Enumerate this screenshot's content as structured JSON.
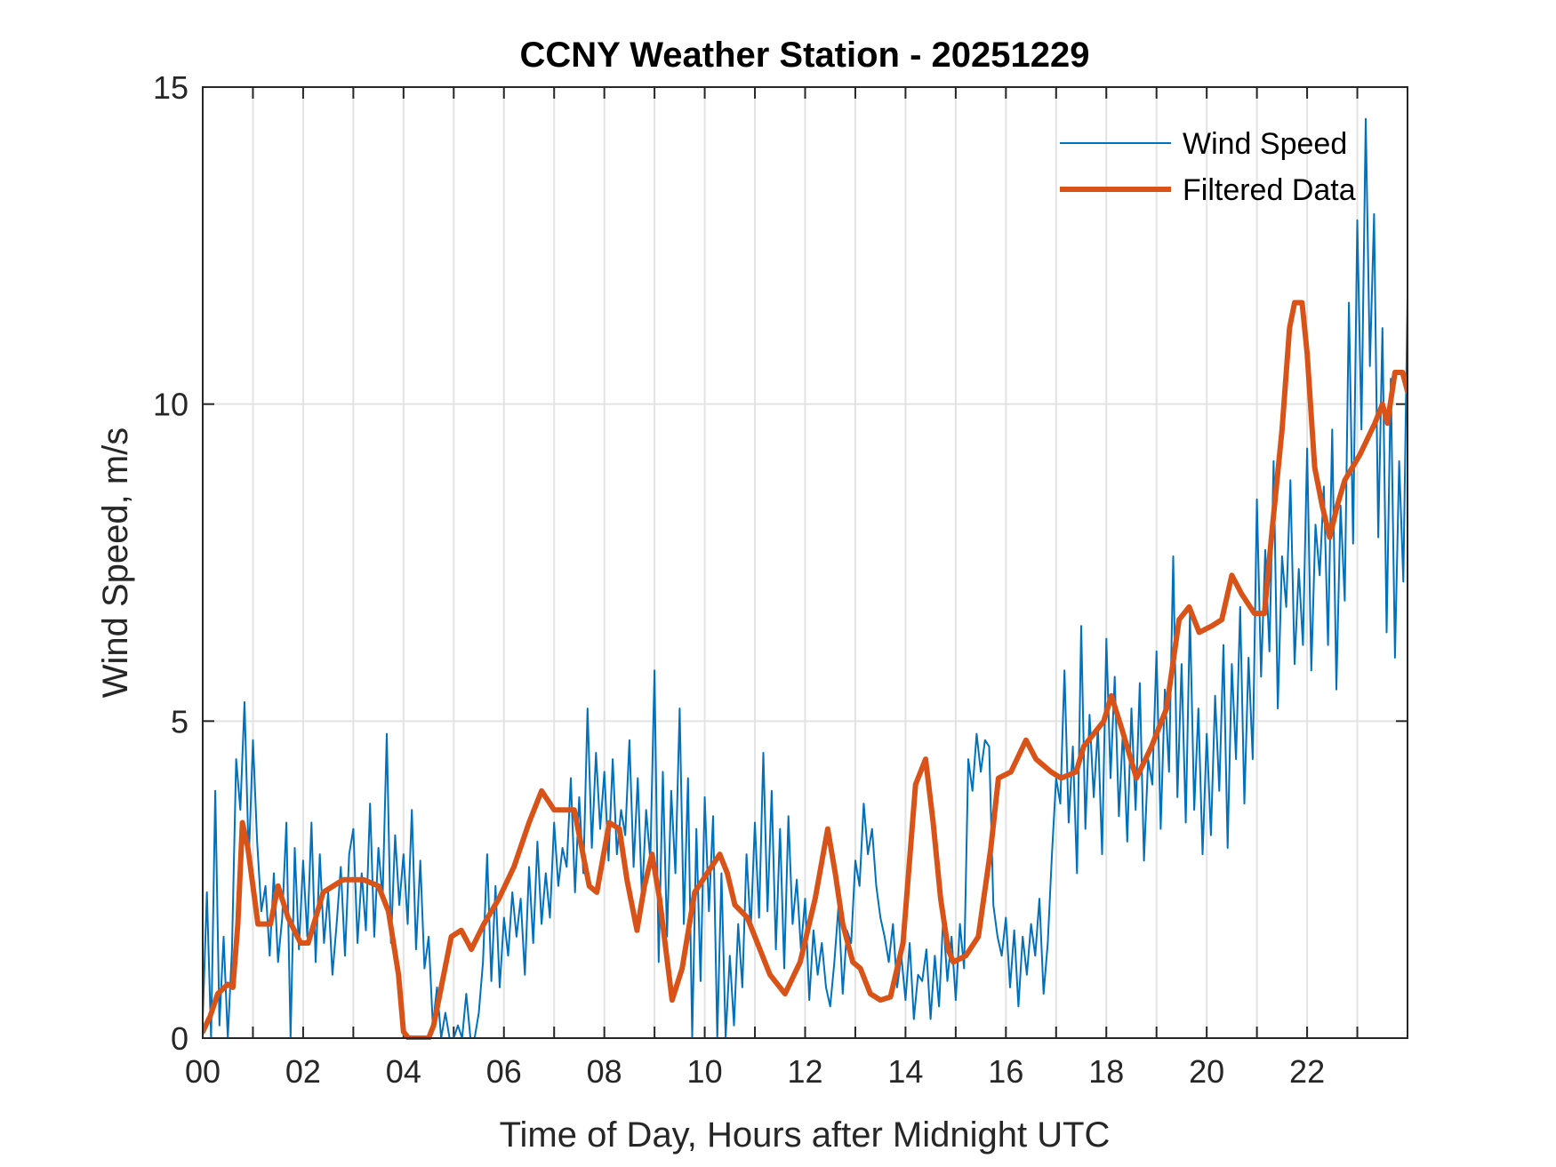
{
  "chart_data": {
    "type": "line",
    "title": "CCNY Weather Station - 20251229",
    "xlabel": "Time of Day, Hours after Midnight UTC",
    "ylabel": "Wind Speed, m/s",
    "xlim": [
      0,
      24
    ],
    "ylim": [
      0,
      15
    ],
    "grid": true,
    "legend_position": "top-right",
    "x_ticks": [
      0,
      2,
      4,
      6,
      8,
      10,
      12,
      14,
      16,
      18,
      20,
      22
    ],
    "x_tick_labels": [
      "00",
      "02",
      "04",
      "06",
      "08",
      "10",
      "12",
      "14",
      "16",
      "18",
      "20",
      "22"
    ],
    "x_minor_gridlines_every_hours": 1,
    "y_ticks": [
      0,
      5,
      10,
      15
    ],
    "y_tick_labels": [
      "0",
      "5",
      "10",
      "15"
    ],
    "series": [
      {
        "name": "Wind Speed",
        "color": "#0072BD",
        "style": "thin",
        "sample_interval_minutes": 5,
        "x_start": 0,
        "values": [
          0.3,
          2.3,
          0.0,
          3.9,
          0.2,
          1.6,
          0.0,
          1.4,
          4.4,
          3.6,
          5.3,
          2.8,
          4.7,
          3.1,
          2.0,
          2.4,
          1.3,
          2.6,
          1.2,
          1.9,
          3.4,
          0.0,
          3.0,
          1.4,
          2.8,
          1.6,
          3.4,
          1.2,
          2.9,
          1.5,
          2.3,
          1.0,
          1.8,
          2.7,
          1.3,
          2.9,
          3.3,
          1.5,
          2.6,
          1.7,
          3.7,
          1.6,
          3.0,
          2.2,
          4.8,
          1.5,
          3.2,
          2.1,
          2.9,
          1.8,
          3.6,
          1.4,
          2.8,
          1.1,
          1.6,
          0.2,
          0.8,
          0.0,
          0.4,
          0.0,
          0.0,
          0.2,
          0.0,
          0.7,
          0.0,
          0.0,
          0.4,
          1.2,
          2.9,
          0.9,
          2.4,
          0.8,
          1.9,
          1.3,
          2.3,
          1.6,
          2.2,
          1.0,
          2.7,
          1.5,
          3.1,
          1.8,
          2.6,
          1.9,
          3.4,
          2.4,
          3.0,
          2.7,
          4.1,
          2.3,
          3.8,
          2.6,
          5.2,
          3.0,
          4.5,
          3.3,
          4.2,
          2.8,
          4.4,
          2.9,
          3.6,
          3.2,
          4.7,
          2.7,
          4.1,
          2.2,
          3.6,
          2.8,
          5.8,
          1.2,
          4.2,
          1.6,
          3.9,
          2.6,
          5.2,
          1.8,
          4.1,
          0.0,
          3.3,
          0.9,
          3.8,
          2.0,
          3.5,
          0.0,
          2.6,
          0.0,
          1.3,
          0.2,
          1.8,
          0.8,
          2.9,
          1.7,
          3.4,
          1.9,
          4.5,
          2.0,
          3.9,
          1.4,
          3.3,
          1.1,
          3.5,
          1.8,
          2.5,
          1.4,
          2.2,
          0.6,
          1.7,
          1.0,
          1.5,
          0.8,
          0.5,
          1.2,
          2.1,
          0.7,
          1.7,
          1.5,
          2.8,
          2.4,
          3.7,
          2.9,
          3.3,
          2.4,
          1.9,
          1.6,
          1.2,
          1.8,
          0.8,
          1.3,
          0.6,
          1.5,
          0.3,
          1.0,
          0.9,
          1.4,
          0.3,
          1.3,
          0.5,
          1.9,
          0.9,
          1.6,
          0.6,
          1.8,
          1.1,
          4.4,
          3.9,
          4.8,
          4.2,
          4.7,
          4.6,
          2.1,
          1.6,
          1.3,
          1.9,
          0.8,
          1.7,
          0.5,
          1.6,
          1.0,
          1.8,
          1.3,
          2.2,
          0.7,
          1.5,
          2.9,
          4.1,
          3.7,
          5.8,
          3.4,
          4.6,
          2.6,
          6.5,
          3.3,
          5.1,
          3.8,
          4.9,
          2.9,
          6.3,
          4.1,
          5.7,
          3.5,
          4.9,
          3.1,
          5.2,
          3.6,
          5.6,
          2.8,
          4.4,
          4.0,
          6.1,
          3.3,
          5.5,
          4.2,
          7.6,
          3.8,
          5.9,
          3.4,
          6.7,
          3.6,
          5.2,
          2.9,
          4.8,
          3.2,
          5.4,
          3.9,
          6.2,
          3.0,
          5.9,
          4.4,
          6.8,
          3.7,
          6.0,
          4.4,
          8.5,
          5.7,
          7.7,
          6.1,
          9.1,
          5.2,
          7.6,
          6.8,
          8.8,
          5.9,
          7.4,
          6.2,
          9.3,
          5.8,
          8.1,
          7.3,
          8.7,
          6.2,
          9.6,
          5.5,
          8.4,
          6.9,
          11.6,
          7.8,
          12.9,
          9.6,
          14.5,
          10.6,
          13.0,
          7.9,
          11.2,
          6.4,
          10.4,
          6.0,
          9.1,
          7.2,
          11.7,
          6.8,
          9.9,
          7.5,
          12.2,
          8.0,
          10.4,
          7.3,
          11.5,
          8.6,
          12.6,
          7.7,
          11.8,
          8.2,
          13.7,
          6.7,
          10.7
        ]
      },
      {
        "name": "Filtered Data",
        "color": "#D95319",
        "style": "thick",
        "points": [
          [
            0.0,
            0.1
          ],
          [
            0.15,
            0.35
          ],
          [
            0.3,
            0.7
          ],
          [
            0.5,
            0.85
          ],
          [
            0.6,
            0.8
          ],
          [
            0.7,
            1.8
          ],
          [
            0.79,
            3.4
          ],
          [
            0.9,
            3.0
          ],
          [
            1.1,
            1.8
          ],
          [
            1.35,
            1.8
          ],
          [
            1.5,
            2.4
          ],
          [
            1.7,
            1.9
          ],
          [
            1.95,
            1.5
          ],
          [
            2.1,
            1.5
          ],
          [
            2.4,
            2.3
          ],
          [
            2.8,
            2.5
          ],
          [
            3.2,
            2.5
          ],
          [
            3.5,
            2.4
          ],
          [
            3.7,
            2.0
          ],
          [
            3.9,
            1.0
          ],
          [
            4.0,
            0.1
          ],
          [
            4.1,
            0.0
          ],
          [
            4.5,
            0.0
          ],
          [
            4.6,
            0.2
          ],
          [
            4.75,
            0.8
          ],
          [
            4.95,
            1.6
          ],
          [
            5.15,
            1.7
          ],
          [
            5.35,
            1.4
          ],
          [
            5.6,
            1.8
          ],
          [
            5.9,
            2.2
          ],
          [
            6.2,
            2.7
          ],
          [
            6.5,
            3.4
          ],
          [
            6.75,
            3.9
          ],
          [
            7.0,
            3.6
          ],
          [
            7.4,
            3.6
          ],
          [
            7.55,
            3.0
          ],
          [
            7.7,
            2.4
          ],
          [
            7.85,
            2.3
          ],
          [
            8.1,
            3.4
          ],
          [
            8.3,
            3.3
          ],
          [
            8.45,
            2.5
          ],
          [
            8.65,
            1.7
          ],
          [
            8.8,
            2.4
          ],
          [
            8.95,
            2.9
          ],
          [
            9.1,
            2.2
          ],
          [
            9.35,
            0.6
          ],
          [
            9.55,
            1.1
          ],
          [
            9.8,
            2.3
          ],
          [
            10.05,
            2.6
          ],
          [
            10.3,
            2.9
          ],
          [
            10.45,
            2.6
          ],
          [
            10.6,
            2.1
          ],
          [
            10.85,
            1.9
          ],
          [
            11.0,
            1.6
          ],
          [
            11.3,
            1.0
          ],
          [
            11.6,
            0.7
          ],
          [
            11.9,
            1.2
          ],
          [
            12.2,
            2.2
          ],
          [
            12.45,
            3.3
          ],
          [
            12.6,
            2.6
          ],
          [
            12.75,
            1.8
          ],
          [
            12.95,
            1.2
          ],
          [
            13.1,
            1.1
          ],
          [
            13.3,
            0.7
          ],
          [
            13.5,
            0.6
          ],
          [
            13.7,
            0.65
          ],
          [
            13.95,
            1.5
          ],
          [
            14.2,
            4.0
          ],
          [
            14.4,
            4.4
          ],
          [
            14.55,
            3.4
          ],
          [
            14.7,
            2.2
          ],
          [
            14.85,
            1.4
          ],
          [
            14.95,
            1.2
          ],
          [
            15.2,
            1.3
          ],
          [
            15.45,
            1.6
          ],
          [
            15.7,
            3.0
          ],
          [
            15.85,
            4.1
          ],
          [
            16.1,
            4.2
          ],
          [
            16.4,
            4.7
          ],
          [
            16.6,
            4.4
          ],
          [
            16.9,
            4.2
          ],
          [
            17.1,
            4.1
          ],
          [
            17.4,
            4.2
          ],
          [
            17.55,
            4.6
          ],
          [
            17.75,
            4.8
          ],
          [
            17.95,
            5.0
          ],
          [
            18.1,
            5.4
          ],
          [
            18.3,
            4.9
          ],
          [
            18.6,
            4.1
          ],
          [
            18.9,
            4.6
          ],
          [
            19.2,
            5.2
          ],
          [
            19.45,
            6.6
          ],
          [
            19.65,
            6.8
          ],
          [
            19.85,
            6.4
          ],
          [
            20.1,
            6.5
          ],
          [
            20.3,
            6.6
          ],
          [
            20.5,
            7.3
          ],
          [
            20.7,
            7.0
          ],
          [
            20.95,
            6.7
          ],
          [
            21.15,
            6.7
          ],
          [
            21.3,
            8.0
          ],
          [
            21.5,
            9.6
          ],
          [
            21.65,
            11.2
          ],
          [
            21.75,
            11.6
          ],
          [
            21.9,
            11.6
          ],
          [
            22.0,
            10.8
          ],
          [
            22.15,
            9.0
          ],
          [
            22.3,
            8.4
          ],
          [
            22.45,
            7.9
          ],
          [
            22.6,
            8.4
          ],
          [
            22.75,
            8.8
          ],
          [
            23.05,
            9.2
          ],
          [
            23.35,
            9.7
          ],
          [
            23.5,
            10.0
          ],
          [
            23.6,
            9.7
          ],
          [
            23.75,
            10.5
          ],
          [
            23.9,
            10.5
          ],
          [
            24.0,
            10.2
          ]
        ]
      }
    ]
  }
}
